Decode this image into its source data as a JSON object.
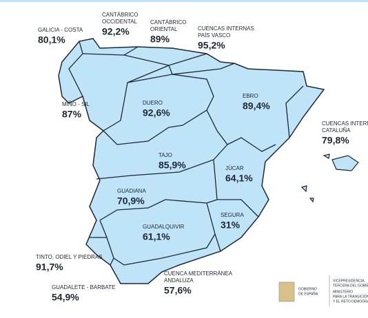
{
  "regions": [
    {
      "name": [
        "GALICIA - COSTA"
      ],
      "value": "80,1%"
    },
    {
      "name": [
        "CANTÁBRICO",
        "OCCIDENTAL"
      ],
      "value": "92,2%"
    },
    {
      "name": [
        "CANTÁBRICO",
        "ORIENTAL"
      ],
      "value": "89%"
    },
    {
      "name": [
        "CUENCAS INTERNAS",
        "PAÍS VASCO"
      ],
      "value": "95,2%"
    },
    {
      "name": [
        "MIÑO - SIL"
      ],
      "value": "87%"
    },
    {
      "name": [
        "DUERO"
      ],
      "value": "92,6%"
    },
    {
      "name": [
        "EBRO"
      ],
      "value": "89,4%"
    },
    {
      "name": [
        "CUENCAS INTERNAS",
        "CATALUÑA"
      ],
      "value": "79,8%"
    },
    {
      "name": [
        "TAJO"
      ],
      "value": "85,9%"
    },
    {
      "name": [
        "JÚCAR"
      ],
      "value": "64,1%"
    },
    {
      "name": [
        "GUADIANA"
      ],
      "value": "70,9%"
    },
    {
      "name": [
        "SEGURA"
      ],
      "value": "31%"
    },
    {
      "name": [
        "GUADALQUIVIR"
      ],
      "value": "61,1%"
    },
    {
      "name": [
        "TINTO, ODIEL Y PIEDRAS"
      ],
      "value": "91,7%"
    },
    {
      "name": [
        "GUADALETE - BARBATE"
      ],
      "value": "54,9%"
    },
    {
      "name": [
        "CUENCA MEDITERRÁNEA",
        "ANDALUZA"
      ],
      "value": "57,6%"
    }
  ],
  "footer": {
    "government": [
      "GOBIERNO",
      "DE ESPAÑA"
    ],
    "vicepresidency": [
      "VICEPRESIDENCIA",
      "TERCERA DEL GOBIE"
    ],
    "ministry": [
      "MINISTERIO",
      "PARA LA TRANSICIÓN",
      "Y EL RETO DEMOGRÁ"
    ]
  }
}
